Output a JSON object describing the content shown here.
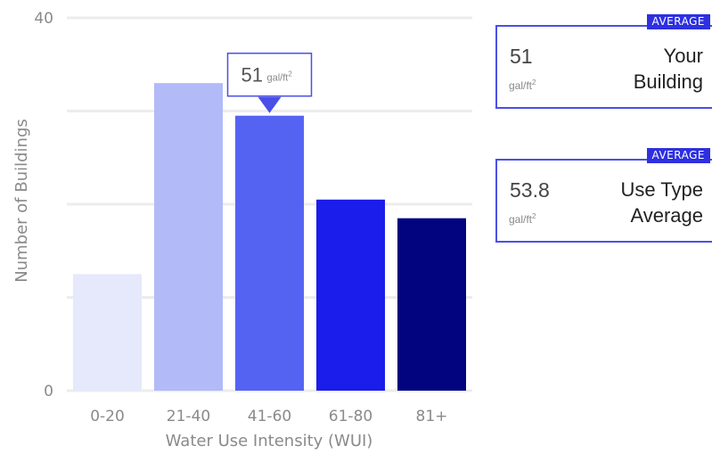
{
  "chart_data": {
    "type": "bar",
    "categories": [
      "0-20",
      "21-40",
      "41-60",
      "61-80",
      "81+"
    ],
    "values": [
      12.5,
      33,
      29.5,
      20.5,
      18.5
    ],
    "colors": [
      "#e6e8fb",
      "#b2baf8",
      "#5563f3",
      "#1b1dea",
      "#02047f"
    ],
    "highlight_index": 2,
    "xlabel": "Water Use Intensity (WUI)",
    "ylabel": "Number of Buildings",
    "ylim": [
      0,
      40
    ],
    "y_tick_labels": [
      "0",
      "40"
    ],
    "grid": true,
    "tooltip": {
      "value": "51",
      "unit": "gal/ft",
      "unit_sup": "2"
    }
  },
  "cards": [
    {
      "badge": "AVERAGE",
      "value": "51",
      "unit": "gal/ft",
      "unit_sup": "2",
      "label_line1": "Your",
      "label_line2": "Building"
    },
    {
      "badge": "AVERAGE",
      "value": "53.8",
      "unit": "gal/ft",
      "unit_sup": "2",
      "label_line1": "Use Type",
      "label_line2": "Average"
    }
  ],
  "colors": {
    "accent": "#4a4fe8",
    "badge": "#2e30e0"
  }
}
